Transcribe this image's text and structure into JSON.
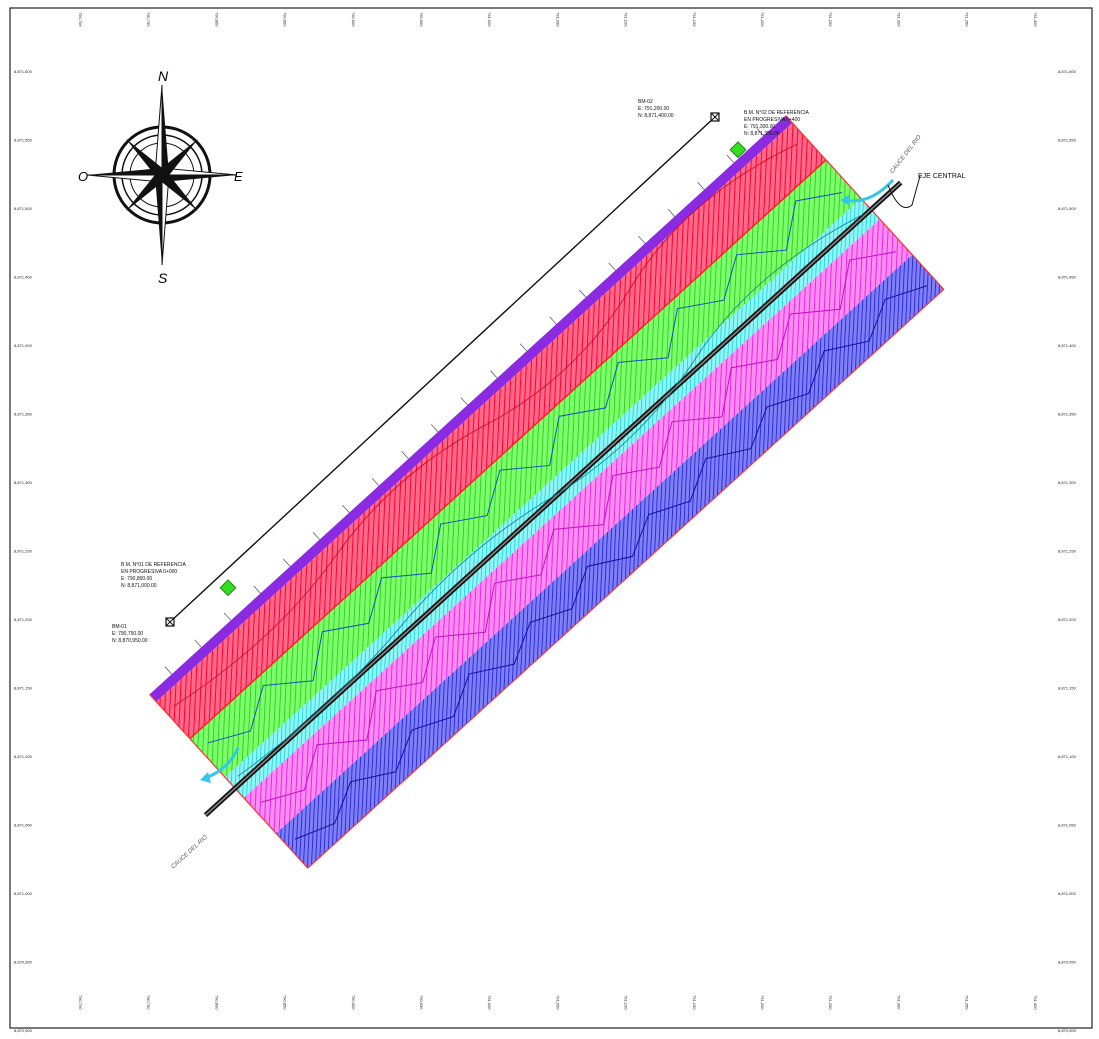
{
  "compass": {
    "north": "N",
    "south": "S",
    "east": "E",
    "west": "O"
  },
  "labels": {
    "eje_central": "EJE CENTRAL",
    "cauce_top": "CAUCE DEL RIO",
    "cauce_bottom": "CAUCE DEL RIO",
    "point_top_title": "BM-02",
    "point_top_e": "E: 791,200.00",
    "point_top_n": "N: 8,871,400.00",
    "bm_top_title": "B.M. N°02 DE REFERENCIA",
    "bm_top_line2": "EN PROGRESIVA 0+400",
    "bm_top_e": "E: 791,300.00",
    "bm_top_n": "N: 8,871,350.00",
    "bm_bottom_title": "B.M. N°01 DE REFERENCIA",
    "bm_bottom_line2": "EN PROGRESIVA 0+000",
    "bm_bottom_e": "E: 790,800.00",
    "bm_bottom_n": "N: 8,871,000.00",
    "point_bottom_title": "BM-01",
    "point_bottom_e": "E: 790,750.00",
    "point_bottom_n": "N: 8,870,950.00"
  },
  "grid": {
    "left_ticks": [
      "8,871,600",
      "8,871,550",
      "8,871,500",
      "8,871,450",
      "8,871,400",
      "8,871,350",
      "8,871,300",
      "8,871,250",
      "8,871,200",
      "8,871,150",
      "8,871,100",
      "8,871,050",
      "8,871,000",
      "8,870,950",
      "8,870,900"
    ],
    "right_ticks": [
      "8,871,600",
      "8,871,550",
      "8,871,500",
      "8,871,450",
      "8,871,400",
      "8,871,350",
      "8,871,300",
      "8,871,250",
      "8,871,200",
      "8,871,150",
      "8,871,100",
      "8,871,050",
      "8,871,000",
      "8,870,950",
      "8,870,900"
    ],
    "top_ticks": [
      "790,700",
      "790,750",
      "790,800",
      "790,850",
      "790,900",
      "790,950",
      "791,000",
      "791,050",
      "791,100",
      "791,150",
      "791,200",
      "791,250",
      "791,300",
      "791,350",
      "791,400"
    ],
    "bottom_ticks": [
      "790,700",
      "790,750",
      "790,800",
      "790,850",
      "790,900",
      "790,950",
      "791,000",
      "791,050",
      "791,100",
      "791,150",
      "791,200",
      "791,250",
      "791,300",
      "791,350",
      "791,400"
    ]
  },
  "colors": {
    "purple": "#8a2be2",
    "red": "#ff2040",
    "pink": "#ff3c78",
    "green": "#44ee33",
    "cyan": "#22e5e5",
    "magenta": "#ee22ee",
    "blue": "#2222dd",
    "river": "#33c8e8"
  }
}
